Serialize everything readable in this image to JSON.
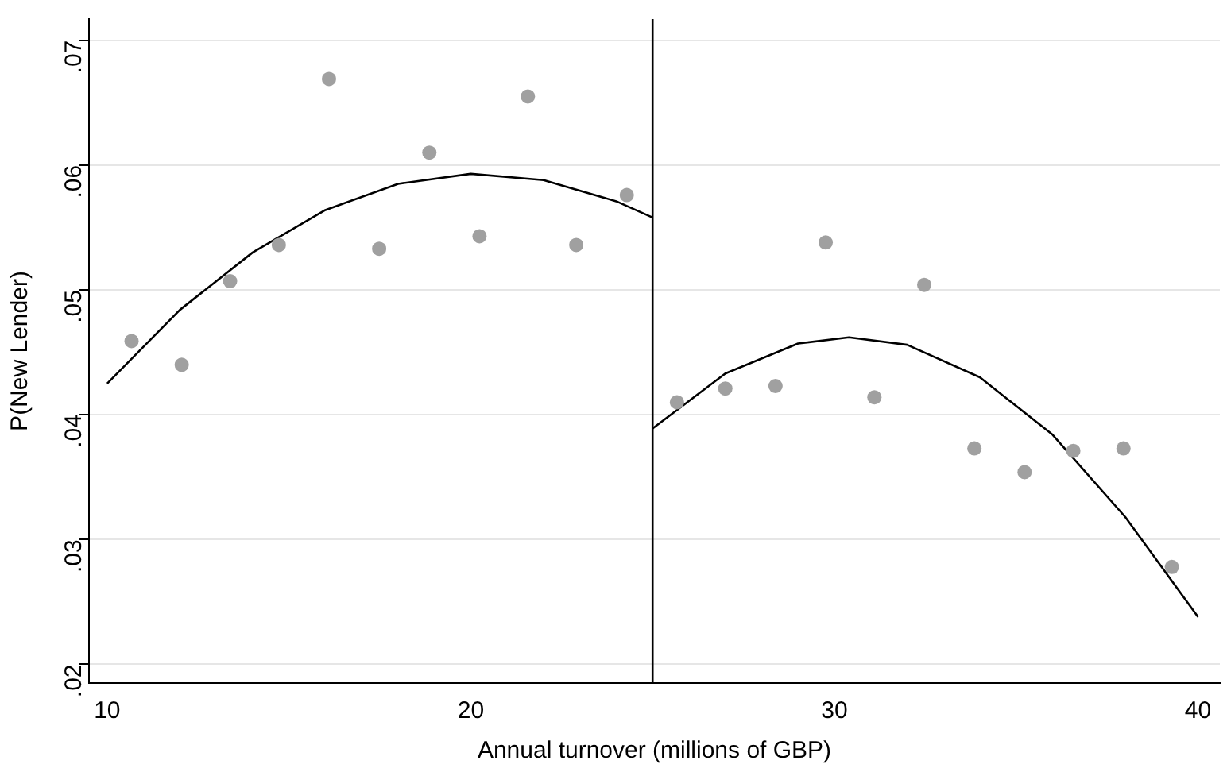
{
  "chart_data": {
    "type": "scatter",
    "xlabel": "Annual turnover (millions of GBP)",
    "ylabel": "P(New Lender)",
    "xlim": [
      9.5,
      40.6
    ],
    "ylim": [
      0.0185,
      0.0717
    ],
    "xticks": [
      10,
      20,
      30,
      40
    ],
    "yticks": [
      {
        "value": 0.02,
        "label": ".02"
      },
      {
        "value": 0.03,
        "label": ".03"
      },
      {
        "value": 0.04,
        "label": ".04"
      },
      {
        "value": 0.05,
        "label": ".05"
      },
      {
        "value": 0.06,
        "label": ".06"
      },
      {
        "value": 0.07,
        "label": ".07"
      }
    ],
    "grid": "y",
    "legend": false,
    "marker": "circle",
    "series": [
      {
        "color": "#a0a0a0",
        "x": [
          10.67,
          12.05,
          13.38,
          14.72,
          16.1,
          17.48,
          18.86,
          20.24,
          21.57,
          22.9,
          24.29,
          25.67,
          27.0,
          28.38,
          29.76,
          31.1,
          32.47,
          33.85,
          35.23,
          36.57,
          37.95,
          39.28
        ],
        "values": [
          0.0459,
          0.044,
          0.0507,
          0.0536,
          0.0669,
          0.0533,
          0.061,
          0.0543,
          0.0655,
          0.0536,
          0.0576,
          0.041,
          0.0421,
          0.0423,
          0.0538,
          0.0414,
          0.0504,
          0.0373,
          0.0354,
          0.0371,
          0.0373,
          0.0278
        ]
      },
      {
        "type": "line",
        "color": "#000000",
        "marker": "none",
        "x": [
          10,
          12,
          14,
          16,
          18,
          20,
          22,
          24,
          25
        ],
        "values": [
          0.0425,
          0.0484,
          0.053,
          0.0564,
          0.0585,
          0.0593,
          0.0588,
          0.0571,
          0.0558
        ]
      },
      {
        "type": "line",
        "color": "#000000",
        "marker": "none",
        "x": [
          25,
          27,
          29,
          30.4,
          32,
          34,
          36,
          38,
          40
        ],
        "values": [
          0.0389,
          0.0433,
          0.0457,
          0.0462,
          0.0456,
          0.043,
          0.0384,
          0.0318,
          0.0238
        ]
      }
    ],
    "ref_lines": [
      {
        "axis": "x",
        "value": 25,
        "color": "#000000"
      }
    ]
  }
}
